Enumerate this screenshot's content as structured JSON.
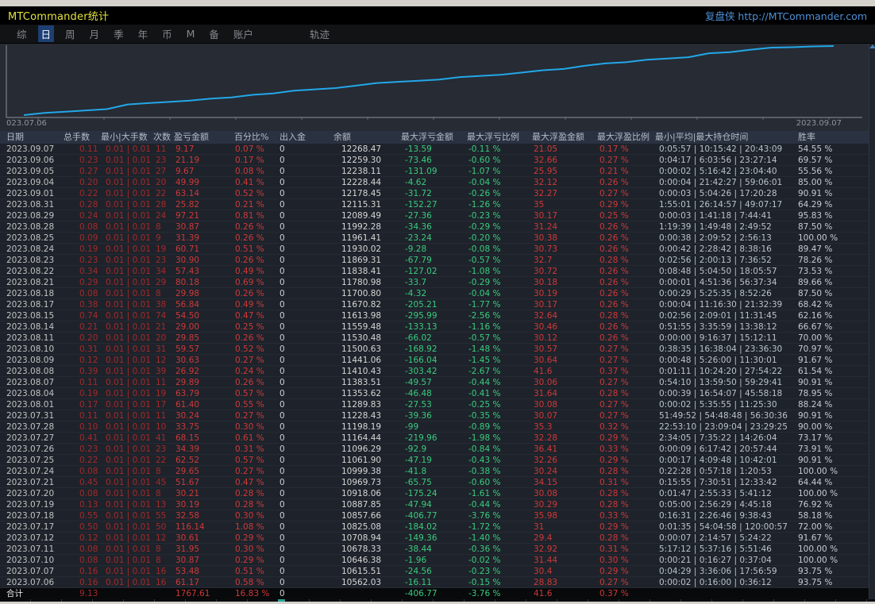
{
  "window": {
    "title": "MTCommander统计",
    "brand": "复盘侠 http://MTCommander.com"
  },
  "menu": {
    "items": [
      "综",
      "日",
      "周",
      "月",
      "季",
      "年",
      "币",
      "M",
      "备",
      "账户",
      "轨迹"
    ],
    "active": "日"
  },
  "chart_data": {
    "type": "line",
    "title": "",
    "xlabel": "",
    "ylabel": "",
    "x_first_label": "023.07.06",
    "x_last_label": "2023.09.07",
    "line_color": "#23a7e8",
    "grid": false,
    "legend": "none",
    "series": [
      {
        "name": "余额",
        "x": [
          "2023.07.06",
          "2023.07.07",
          "2023.07.10",
          "2023.07.11",
          "2023.07.12",
          "2023.07.17",
          "2023.07.18",
          "2023.07.19",
          "2023.07.20",
          "2023.07.21",
          "2023.07.24",
          "2023.07.25",
          "2023.07.26",
          "2023.07.27",
          "2023.07.28",
          "2023.07.31",
          "2023.08.01",
          "2023.08.04",
          "2023.08.07",
          "2023.08.08",
          "2023.08.09",
          "2023.08.10",
          "2023.08.11",
          "2023.08.14",
          "2023.08.15",
          "2023.08.17",
          "2023.08.18",
          "2023.08.21",
          "2023.08.22",
          "2023.08.23",
          "2023.08.24",
          "2023.08.25",
          "2023.08.28",
          "2023.08.29",
          "2023.08.31",
          "2023.09.01",
          "2023.09.04",
          "2023.09.05",
          "2023.09.06",
          "2023.09.07"
        ],
        "values": [
          10562.03,
          10615.51,
          10646.38,
          10678.33,
          10708.94,
          10825.08,
          10857.66,
          10887.85,
          10918.06,
          10969.73,
          10999.38,
          11061.9,
          11096.29,
          11164.44,
          11198.19,
          11228.43,
          11289.83,
          11353.62,
          11383.51,
          11410.43,
          11441.06,
          11500.63,
          11530.48,
          11559.48,
          11613.98,
          11670.82,
          11700.8,
          11780.98,
          11838.41,
          11869.31,
          11930.02,
          11961.41,
          11992.28,
          12089.49,
          12115.31,
          12178.45,
          12228.44,
          12238.11,
          12259.3,
          12268.47
        ]
      }
    ],
    "ylim": [
      10450,
      12350
    ]
  },
  "table": {
    "headers": [
      "日期",
      "总手数",
      "最小|大手数",
      "次数",
      "盈亏金额",
      "百分比%",
      "出入金",
      "余额",
      "最大浮亏金额",
      "最大浮亏比例",
      "最大浮盈金额",
      "最大浮盈比例",
      "最小|平均|最大持仓时间",
      "胜率"
    ],
    "rows": [
      [
        "2023.09.07",
        "0.11",
        "0.01 | 0.01",
        "11",
        "9.17",
        "0.07 %",
        "0",
        "12268.47",
        "-13.59",
        "-0.11 %",
        "21.05",
        "0.17 %",
        "0:05:57 | 10:15:42 | 20:43:09",
        "54.55 %"
      ],
      [
        "2023.09.06",
        "0.23",
        "0.01 | 0.01",
        "23",
        "21.19",
        "0.17 %",
        "0",
        "12259.30",
        "-73.46",
        "-0.60 %",
        "32.66",
        "0.27 %",
        "0:04:17 | 6:03:56 | 23:27:14",
        "69.57 %"
      ],
      [
        "2023.09.05",
        "0.27",
        "0.01 | 0.01",
        "27",
        "9.67",
        "0.08 %",
        "0",
        "12238.11",
        "-131.09",
        "-1.07 %",
        "25.95",
        "0.21 %",
        "0:00:02 | 5:16:42 | 23:04:40",
        "55.56 %"
      ],
      [
        "2023.09.04",
        "0.20",
        "0.01 | 0.01",
        "20",
        "49.99",
        "0.41 %",
        "0",
        "12228.44",
        "-4.62",
        "-0.04 %",
        "32.12",
        "0.26 %",
        "0:00:04 | 21:42:27 | 59:06:01",
        "85.00 %"
      ],
      [
        "2023.09.01",
        "0.22",
        "0.01 | 0.01",
        "22",
        "63.14",
        "0.52 %",
        "0",
        "12178.45",
        "-31.72",
        "-0.26 %",
        "32.27",
        "0.27 %",
        "0:00:03 | 5:04:26 | 17:20:28",
        "90.91 %"
      ],
      [
        "2023.08.31",
        "0.28",
        "0.01 | 0.01",
        "28",
        "25.82",
        "0.21 %",
        "0",
        "12115.31",
        "-152.27",
        "-1.26 %",
        "35",
        "0.29 %",
        "1:55:01 | 26:14:57 | 49:07:17",
        "64.29 %"
      ],
      [
        "2023.08.29",
        "0.24",
        "0.01 | 0.01",
        "24",
        "97.21",
        "0.81 %",
        "0",
        "12089.49",
        "-27.36",
        "-0.23 %",
        "30.17",
        "0.25 %",
        "0:00:03 | 1:41:18 | 7:44:41",
        "95.83 %"
      ],
      [
        "2023.08.28",
        "0.08",
        "0.01 | 0.01",
        "8",
        "30.87",
        "0.26 %",
        "0",
        "11992.28",
        "-34.36",
        "-0.29 %",
        "31.24",
        "0.26 %",
        "1:19:39 | 1:49:48 | 2:49:52",
        "87.50 %"
      ],
      [
        "2023.08.25",
        "0.09",
        "0.01 | 0.01",
        "9",
        "31.39",
        "0.26 %",
        "0",
        "11961.41",
        "-23.24",
        "-0.20 %",
        "30.38",
        "0.26 %",
        "0:00:38 | 2:09:52 | 2:56:13",
        "100.00 %"
      ],
      [
        "2023.08.24",
        "0.19",
        "0.01 | 0.01",
        "19",
        "60.71",
        "0.51 %",
        "0",
        "11930.02",
        "-9.28",
        "-0.08 %",
        "30.73",
        "0.26 %",
        "0:00:42 | 2:28:42 | 8:38:16",
        "89.47 %"
      ],
      [
        "2023.08.23",
        "0.23",
        "0.01 | 0.01",
        "23",
        "30.90",
        "0.26 %",
        "0",
        "11869.31",
        "-67.79",
        "-0.57 %",
        "32.7",
        "0.28 %",
        "0:02:56 | 2:00:13 | 7:36:52",
        "78.26 %"
      ],
      [
        "2023.08.22",
        "0.34",
        "0.01 | 0.01",
        "34",
        "57.43",
        "0.49 %",
        "0",
        "11838.41",
        "-127.02",
        "-1.08 %",
        "30.72",
        "0.26 %",
        "0:08:48 | 5:04:50 | 18:05:57",
        "73.53 %"
      ],
      [
        "2023.08.21",
        "0.29",
        "0.01 | 0.01",
        "29",
        "80.18",
        "0.69 %",
        "0",
        "11780.98",
        "-33.7",
        "-0.29 %",
        "30.18",
        "0.26 %",
        "0:00:01 | 4:51:36 | 56:37:34",
        "89.66 %"
      ],
      [
        "2023.08.18",
        "0.08",
        "0.01 | 0.01",
        "8",
        "29.98",
        "0.26 %",
        "0",
        "11700.80",
        "-4.32",
        "-0.04 %",
        "30.19",
        "0.26 %",
        "0:00:29 | 5:25:35 | 8:52:26",
        "87.50 %"
      ],
      [
        "2023.08.17",
        "0.38",
        "0.01 | 0.01",
        "38",
        "56.84",
        "0.49 %",
        "0",
        "11670.82",
        "-205.21",
        "-1.77 %",
        "30.17",
        "0.26 %",
        "0:00:04 | 11:16:30 | 21:32:39",
        "68.42 %"
      ],
      [
        "2023.08.15",
        "0.74",
        "0.01 | 0.01",
        "74",
        "54.50",
        "0.47 %",
        "0",
        "11613.98",
        "-295.99",
        "-2.56 %",
        "32.64",
        "0.28 %",
        "0:02:56 | 2:09:01 | 11:31:45",
        "62.16 %"
      ],
      [
        "2023.08.14",
        "0.21",
        "0.01 | 0.01",
        "21",
        "29.00",
        "0.25 %",
        "0",
        "11559.48",
        "-133.13",
        "-1.16 %",
        "30.46",
        "0.26 %",
        "0:51:55 | 3:35:59 | 13:38:12",
        "66.67 %"
      ],
      [
        "2023.08.11",
        "0.20",
        "0.01 | 0.01",
        "20",
        "29.85",
        "0.26 %",
        "0",
        "11530.48",
        "-66.02",
        "-0.57 %",
        "30.12",
        "0.26 %",
        "0:00:00 | 9:16:37 | 15:12:11",
        "70.00 %"
      ],
      [
        "2023.08.10",
        "0.31",
        "0.01 | 0.01",
        "31",
        "59.57",
        "0.52 %",
        "0",
        "11500.63",
        "-168.92",
        "-1.48 %",
        "30.57",
        "0.27 %",
        "0:38:35 | 16:38:04 | 23:36:30",
        "70.97 %"
      ],
      [
        "2023.08.09",
        "0.12",
        "0.01 | 0.01",
        "12",
        "30.63",
        "0.27 %",
        "0",
        "11441.06",
        "-166.04",
        "-1.45 %",
        "30.64",
        "0.27 %",
        "0:00:48 | 5:26:00 | 11:30:01",
        "91.67 %"
      ],
      [
        "2023.08.08",
        "0.39",
        "0.01 | 0.01",
        "39",
        "26.92",
        "0.24 %",
        "0",
        "11410.43",
        "-303.42",
        "-2.67 %",
        "41.6",
        "0.37 %",
        "0:01:11 | 10:24:20 | 27:54:22",
        "61.54 %"
      ],
      [
        "2023.08.07",
        "0.11",
        "0.01 | 0.01",
        "11",
        "29.89",
        "0.26 %",
        "0",
        "11383.51",
        "-49.57",
        "-0.44 %",
        "30.06",
        "0.27 %",
        "0:54:10 | 13:59:50 | 59:29:41",
        "90.91 %"
      ],
      [
        "2023.08.04",
        "0.19",
        "0.01 | 0.01",
        "19",
        "63.79",
        "0.57 %",
        "0",
        "11353.62",
        "-46.48",
        "-0.41 %",
        "31.64",
        "0.28 %",
        "0:00:39 | 16:54:07 | 45:58:18",
        "78.95 %"
      ],
      [
        "2023.08.01",
        "0.17",
        "0.01 | 0.01",
        "17",
        "61.40",
        "0.55 %",
        "0",
        "11289.83",
        "-27.53",
        "-0.25 %",
        "30.08",
        "0.27 %",
        "0:00:02 | 5:35:55 | 11:25:30",
        "88.24 %"
      ],
      [
        "2023.07.31",
        "0.11",
        "0.01 | 0.01",
        "11",
        "30.24",
        "0.27 %",
        "0",
        "11228.43",
        "-39.36",
        "-0.35 %",
        "30.07",
        "0.27 %",
        "51:49:52 | 54:48:48 | 56:30:36",
        "90.91 %"
      ],
      [
        "2023.07.28",
        "0.10",
        "0.01 | 0.01",
        "10",
        "33.75",
        "0.30 %",
        "0",
        "11198.19",
        "-99",
        "-0.89 %",
        "35.3",
        "0.32 %",
        "22:53:10 | 23:09:04 | 23:29:25",
        "90.00 %"
      ],
      [
        "2023.07.27",
        "0.41",
        "0.01 | 0.01",
        "41",
        "68.15",
        "0.61 %",
        "0",
        "11164.44",
        "-219.96",
        "-1.98 %",
        "32.28",
        "0.29 %",
        "2:34:05 | 7:35:22 | 14:26:04",
        "73.17 %"
      ],
      [
        "2023.07.26",
        "0.23",
        "0.01 | 0.01",
        "23",
        "34.39",
        "0.31 %",
        "0",
        "11096.29",
        "-92.9",
        "-0.84 %",
        "36.41",
        "0.33 %",
        "0:00:09 | 6:17:42 | 20:57:44",
        "73.91 %"
      ],
      [
        "2023.07.25",
        "0.22",
        "0.01 | 0.01",
        "22",
        "62.52",
        "0.57 %",
        "0",
        "11061.90",
        "-47.19",
        "-0.43 %",
        "32.26",
        "0.29 %",
        "0:00:17 | 4:09:48 | 10:42:01",
        "90.91 %"
      ],
      [
        "2023.07.24",
        "0.08",
        "0.01 | 0.01",
        "8",
        "29.65",
        "0.27 %",
        "0",
        "10999.38",
        "-41.8",
        "-0.38 %",
        "30.24",
        "0.28 %",
        "0:22:28 | 0:57:18 | 1:20:53",
        "100.00 %"
      ],
      [
        "2023.07.21",
        "0.45",
        "0.01 | 0.01",
        "45",
        "51.67",
        "0.47 %",
        "0",
        "10969.73",
        "-65.75",
        "-0.60 %",
        "34.15",
        "0.31 %",
        "0:15:55 | 7:30:51 | 12:33:42",
        "64.44 %"
      ],
      [
        "2023.07.20",
        "0.08",
        "0.01 | 0.01",
        "8",
        "30.21",
        "0.28 %",
        "0",
        "10918.06",
        "-175.24",
        "-1.61 %",
        "30.08",
        "0.28 %",
        "0:01:47 | 2:55:33 | 5:41:12",
        "100.00 %"
      ],
      [
        "2023.07.19",
        "0.13",
        "0.01 | 0.01",
        "13",
        "30.19",
        "0.28 %",
        "0",
        "10887.85",
        "-47.94",
        "-0.44 %",
        "30.29",
        "0.28 %",
        "0:05:00 | 2:56:29 | 4:45:18",
        "76.92 %"
      ],
      [
        "2023.07.18",
        "0.55",
        "0.01 | 0.01",
        "55",
        "32.58",
        "0.30 %",
        "0",
        "10857.66",
        "-406.77",
        "-3.76 %",
        "35.98",
        "0.33 %",
        "0:16:31 | 2:26:46 | 9:38:43",
        "58.18 %"
      ],
      [
        "2023.07.17",
        "0.50",
        "0.01 | 0.01",
        "50",
        "116.14",
        "1.08 %",
        "0",
        "10825.08",
        "-184.02",
        "-1.72 %",
        "31",
        "0.29 %",
        "0:01:35 | 54:04:58 | 120:00:57",
        "72.00 %"
      ],
      [
        "2023.07.12",
        "0.12",
        "0.01 | 0.01",
        "12",
        "30.61",
        "0.29 %",
        "0",
        "10708.94",
        "-149.36",
        "-1.40 %",
        "29.4",
        "0.28 %",
        "0:00:07 | 2:14:57 | 5:24:22",
        "91.67 %"
      ],
      [
        "2023.07.11",
        "0.08",
        "0.01 | 0.01",
        "8",
        "31.95",
        "0.30 %",
        "0",
        "10678.33",
        "-38.44",
        "-0.36 %",
        "32.92",
        "0.31 %",
        "5:17:12 | 5:37:16 | 5:51:46",
        "100.00 %"
      ],
      [
        "2023.07.10",
        "0.08",
        "0.01 | 0.01",
        "8",
        "30.87",
        "0.29 %",
        "0",
        "10646.38",
        "-1.96",
        "-0.02 %",
        "31.44",
        "0.30 %",
        "0:00:21 | 0:16:27 | 0:37:04",
        "100.00 %"
      ],
      [
        "2023.07.07",
        "0.16",
        "0.01 | 0.01",
        "16",
        "53.48",
        "0.51 %",
        "0",
        "10615.51",
        "-24.56",
        "-0.23 %",
        "30.4",
        "0.29 %",
        "0:04:29 | 3:36:06 | 17:56:59",
        "93.75 %"
      ],
      [
        "2023.07.06",
        "0.16",
        "0.01 | 0.01",
        "16",
        "61.17",
        "0.58 %",
        "0",
        "10562.03",
        "-16.11",
        "-0.15 %",
        "28.83",
        "0.27 %",
        "0:00:02 | 0:16:00 | 0:36:12",
        "93.75 %"
      ]
    ],
    "total": [
      "合计",
      "9.13",
      "",
      "",
      "1767.61",
      "16.83 %",
      "0",
      "",
      "-406.77",
      "-3.76 %",
      "41.6",
      "0.37 %",
      "",
      ""
    ]
  },
  "colors": {
    "accent_line": "#23a7e8",
    "negative_float": "#3acc7e",
    "positive_values": "#cd3939",
    "title_yellow": "#e3e23f",
    "brand_blue": "#4e90d8",
    "active_menu_bg": "#1d3f73"
  }
}
